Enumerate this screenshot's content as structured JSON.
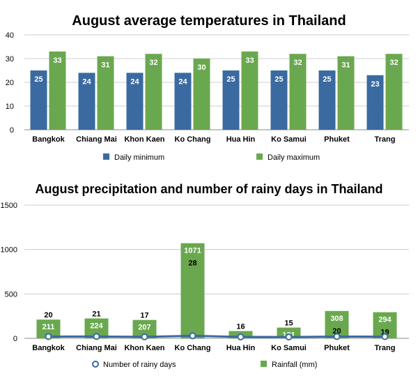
{
  "chart_data": [
    {
      "type": "bar",
      "title": "August average temperatures in Thailand",
      "categories": [
        "Bangkok",
        "Chiang Mai",
        "Khon Kaen",
        "Ko Chang",
        "Hua Hin",
        "Ko Samui",
        "Phuket",
        "Trang"
      ],
      "series": [
        {
          "name": "Daily minimum",
          "color": "#3a6aa0",
          "values": [
            25,
            24,
            24,
            24,
            25,
            25,
            25,
            23
          ]
        },
        {
          "name": "Daily maximum",
          "color": "#6aa84f",
          "values": [
            33,
            31,
            32,
            30,
            33,
            32,
            31,
            32
          ]
        }
      ],
      "yticks": [
        0,
        10,
        20,
        30,
        40
      ],
      "ylim": [
        0,
        40
      ],
      "grid": true,
      "legend": "bottom"
    },
    {
      "type": "bar+line",
      "title": "August precipitation and number of rainy days in Thailand",
      "categories": [
        "Bangkok",
        "Chiang Mai",
        "Khon Kaen",
        "Ko Chang",
        "Hua Hin",
        "Ko Samui",
        "Phuket",
        "Trang"
      ],
      "series": [
        {
          "name": "Number of rainy days",
          "type": "line",
          "color": "#3a6aa0",
          "values": [
            20,
            21,
            17,
            28,
            16,
            15,
            20,
            19
          ]
        },
        {
          "name": "Rainfall (mm)",
          "type": "bar",
          "color": "#6aa84f",
          "values": [
            211,
            224,
            207,
            1071,
            82,
            121,
            308,
            294
          ]
        }
      ],
      "yticks": [
        0,
        500,
        1000,
        1500
      ],
      "ylim": [
        0,
        1500
      ],
      "grid": true,
      "legend": "bottom"
    }
  ]
}
